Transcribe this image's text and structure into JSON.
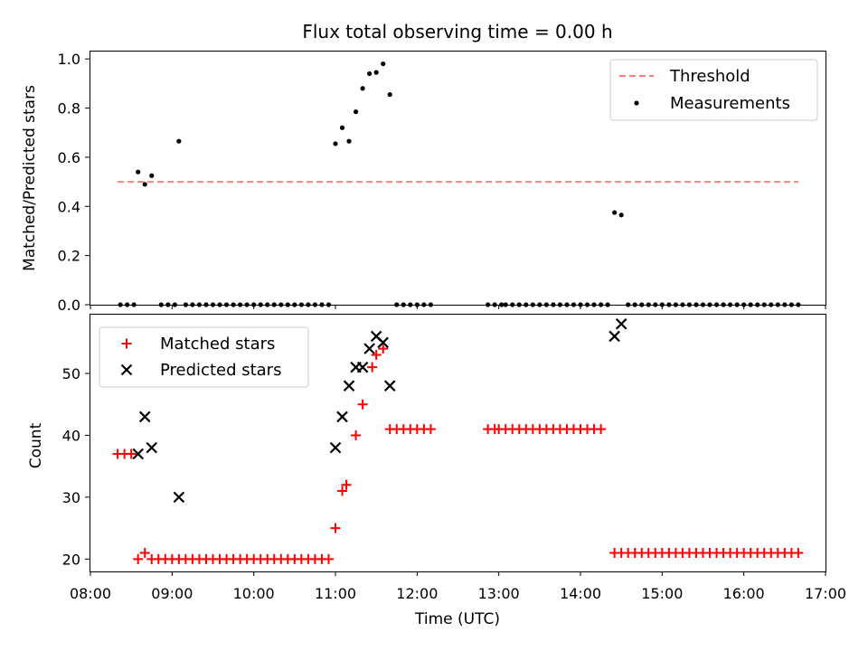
{
  "colors": {
    "threshold": "#ff7f7f",
    "measurements": "#000000",
    "matched": "#ff0000",
    "predicted": "#000000"
  },
  "chart_data": [
    {
      "type": "scatter",
      "title": "Flux total observing time = 0.00 h",
      "ylabel": "Matched/Predicted stars",
      "xlim": [
        "08:00",
        "17:00"
      ],
      "ylim": [
        0,
        1.03
      ],
      "y_ticks": [
        "0.0",
        "0.2",
        "0.4",
        "0.6",
        "0.8",
        "1.0"
      ],
      "grid": false,
      "legend": "top-right",
      "series": [
        {
          "name": "Threshold",
          "style": "dashed-line",
          "x": [
            "08:20",
            "16:40"
          ],
          "values": [
            0.5,
            0.5
          ]
        },
        {
          "name": "Measurements",
          "style": "dots",
          "points": [
            [
              "08:22",
              0
            ],
            [
              "08:27",
              0
            ],
            [
              "08:32",
              0
            ],
            [
              "08:35",
              0.54
            ],
            [
              "08:40",
              0.49
            ],
            [
              "08:45",
              0.525
            ],
            [
              "08:52",
              0
            ],
            [
              "08:57",
              0
            ],
            [
              "09:02",
              0
            ],
            [
              "09:05",
              0.665
            ],
            [
              "09:10",
              0
            ],
            [
              "09:15",
              0
            ],
            [
              "09:20",
              0
            ],
            [
              "09:25",
              0
            ],
            [
              "09:30",
              0
            ],
            [
              "09:35",
              0
            ],
            [
              "09:40",
              0
            ],
            [
              "09:45",
              0
            ],
            [
              "09:50",
              0
            ],
            [
              "09:55",
              0
            ],
            [
              "10:00",
              0
            ],
            [
              "10:05",
              0
            ],
            [
              "10:10",
              0
            ],
            [
              "10:15",
              0
            ],
            [
              "10:20",
              0
            ],
            [
              "10:25",
              0
            ],
            [
              "10:30",
              0
            ],
            [
              "10:35",
              0
            ],
            [
              "10:40",
              0
            ],
            [
              "10:45",
              0
            ],
            [
              "10:50",
              0
            ],
            [
              "10:55",
              0
            ],
            [
              "11:00",
              0.655
            ],
            [
              "11:05",
              0.72
            ],
            [
              "11:10",
              0.665
            ],
            [
              "11:15",
              0.785
            ],
            [
              "11:20",
              0.88
            ],
            [
              "11:25",
              0.94
            ],
            [
              "11:30",
              0.945
            ],
            [
              "11:35",
              0.98
            ],
            [
              "11:40",
              0.855
            ],
            [
              "11:45",
              0
            ],
            [
              "11:50",
              0
            ],
            [
              "11:55",
              0
            ],
            [
              "12:00",
              0
            ],
            [
              "12:05",
              0
            ],
            [
              "12:10",
              0
            ],
            [
              "12:52",
              0
            ],
            [
              "12:57",
              0
            ],
            [
              "13:02",
              0
            ],
            [
              "13:05",
              0
            ],
            [
              "13:10",
              0
            ],
            [
              "13:15",
              0
            ],
            [
              "13:20",
              0
            ],
            [
              "13:25",
              0
            ],
            [
              "13:30",
              0
            ],
            [
              "13:35",
              0
            ],
            [
              "13:40",
              0
            ],
            [
              "13:45",
              0
            ],
            [
              "13:50",
              0
            ],
            [
              "13:55",
              0
            ],
            [
              "14:00",
              0
            ],
            [
              "14:05",
              0
            ],
            [
              "14:10",
              0
            ],
            [
              "14:15",
              0
            ],
            [
              "14:20",
              0
            ],
            [
              "14:25",
              0.375
            ],
            [
              "14:30",
              0.365
            ],
            [
              "14:35",
              0
            ],
            [
              "14:40",
              0
            ],
            [
              "14:45",
              0
            ],
            [
              "14:50",
              0
            ],
            [
              "14:55",
              0
            ],
            [
              "15:00",
              0
            ],
            [
              "15:05",
              0
            ],
            [
              "15:10",
              0
            ],
            [
              "15:15",
              0
            ],
            [
              "15:20",
              0
            ],
            [
              "15:25",
              0
            ],
            [
              "15:30",
              0
            ],
            [
              "15:35",
              0
            ],
            [
              "15:40",
              0
            ],
            [
              "15:45",
              0
            ],
            [
              "15:50",
              0
            ],
            [
              "15:55",
              0
            ],
            [
              "16:00",
              0
            ],
            [
              "16:05",
              0
            ],
            [
              "16:10",
              0
            ],
            [
              "16:15",
              0
            ],
            [
              "16:20",
              0
            ],
            [
              "16:25",
              0
            ],
            [
              "16:30",
              0
            ],
            [
              "16:35",
              0
            ],
            [
              "16:40",
              0
            ]
          ]
        }
      ]
    },
    {
      "type": "scatter",
      "xlabel": "Time (UTC)",
      "ylabel": "Count",
      "xlim": [
        "08:00",
        "17:00"
      ],
      "ylim": [
        18,
        59.5
      ],
      "x_ticks": [
        "08:00",
        "09:00",
        "10:00",
        "11:00",
        "12:00",
        "13:00",
        "14:00",
        "15:00",
        "16:00",
        "17:00"
      ],
      "y_ticks": [
        "20",
        "30",
        "40",
        "50"
      ],
      "grid": false,
      "legend": "top-left",
      "series": [
        {
          "name": "Matched stars",
          "style": "plus",
          "points": [
            [
              "08:20",
              37
            ],
            [
              "08:25",
              37
            ],
            [
              "08:30",
              37
            ],
            [
              "08:35",
              20
            ],
            [
              "08:40",
              21
            ],
            [
              "08:45",
              20
            ],
            [
              "08:50",
              20
            ],
            [
              "08:55",
              20
            ],
            [
              "09:00",
              20
            ],
            [
              "09:05",
              20
            ],
            [
              "09:10",
              20
            ],
            [
              "09:15",
              20
            ],
            [
              "09:20",
              20
            ],
            [
              "09:25",
              20
            ],
            [
              "09:30",
              20
            ],
            [
              "09:35",
              20
            ],
            [
              "09:40",
              20
            ],
            [
              "09:45",
              20
            ],
            [
              "09:50",
              20
            ],
            [
              "09:55",
              20
            ],
            [
              "10:00",
              20
            ],
            [
              "10:05",
              20
            ],
            [
              "10:10",
              20
            ],
            [
              "10:15",
              20
            ],
            [
              "10:20",
              20
            ],
            [
              "10:25",
              20
            ],
            [
              "10:30",
              20
            ],
            [
              "10:35",
              20
            ],
            [
              "10:40",
              20
            ],
            [
              "10:45",
              20
            ],
            [
              "10:50",
              20
            ],
            [
              "10:55",
              20
            ],
            [
              "11:00",
              25
            ],
            [
              "11:05",
              31
            ],
            [
              "11:08",
              32
            ],
            [
              "11:15",
              40
            ],
            [
              "11:20",
              45
            ],
            [
              "11:27",
              51
            ],
            [
              "11:30",
              53
            ],
            [
              "11:35",
              54
            ],
            [
              "11:40",
              41
            ],
            [
              "11:45",
              41
            ],
            [
              "11:50",
              41
            ],
            [
              "11:55",
              41
            ],
            [
              "12:00",
              41
            ],
            [
              "12:05",
              41
            ],
            [
              "12:10",
              41
            ],
            [
              "12:52",
              41
            ],
            [
              "12:57",
              41
            ],
            [
              "13:00",
              41
            ],
            [
              "13:05",
              41
            ],
            [
              "13:10",
              41
            ],
            [
              "13:15",
              41
            ],
            [
              "13:20",
              41
            ],
            [
              "13:25",
              41
            ],
            [
              "13:30",
              41
            ],
            [
              "13:35",
              41
            ],
            [
              "13:40",
              41
            ],
            [
              "13:45",
              41
            ],
            [
              "13:50",
              41
            ],
            [
              "13:55",
              41
            ],
            [
              "14:00",
              41
            ],
            [
              "14:05",
              41
            ],
            [
              "14:10",
              41
            ],
            [
              "14:15",
              41
            ],
            [
              "14:25",
              21
            ],
            [
              "14:30",
              21
            ],
            [
              "14:35",
              21
            ],
            [
              "14:40",
              21
            ],
            [
              "14:45",
              21
            ],
            [
              "14:50",
              21
            ],
            [
              "14:55",
              21
            ],
            [
              "15:00",
              21
            ],
            [
              "15:05",
              21
            ],
            [
              "15:10",
              21
            ],
            [
              "15:15",
              21
            ],
            [
              "15:20",
              21
            ],
            [
              "15:25",
              21
            ],
            [
              "15:30",
              21
            ],
            [
              "15:35",
              21
            ],
            [
              "15:40",
              21
            ],
            [
              "15:45",
              21
            ],
            [
              "15:50",
              21
            ],
            [
              "15:55",
              21
            ],
            [
              "16:00",
              21
            ],
            [
              "16:05",
              21
            ],
            [
              "16:10",
              21
            ],
            [
              "16:15",
              21
            ],
            [
              "16:20",
              21
            ],
            [
              "16:25",
              21
            ],
            [
              "16:30",
              21
            ],
            [
              "16:35",
              21
            ],
            [
              "16:40",
              21
            ]
          ]
        },
        {
          "name": "Predicted stars",
          "style": "x",
          "points": [
            [
              "08:35",
              37
            ],
            [
              "08:40",
              43
            ],
            [
              "08:45",
              38
            ],
            [
              "09:05",
              30
            ],
            [
              "11:00",
              38
            ],
            [
              "11:05",
              43
            ],
            [
              "11:10",
              48
            ],
            [
              "11:15",
              51
            ],
            [
              "11:20",
              51
            ],
            [
              "11:25",
              54
            ],
            [
              "11:30",
              56
            ],
            [
              "11:35",
              55
            ],
            [
              "11:40",
              48
            ],
            [
              "14:25",
              56
            ],
            [
              "14:30",
              58
            ]
          ]
        }
      ]
    }
  ]
}
